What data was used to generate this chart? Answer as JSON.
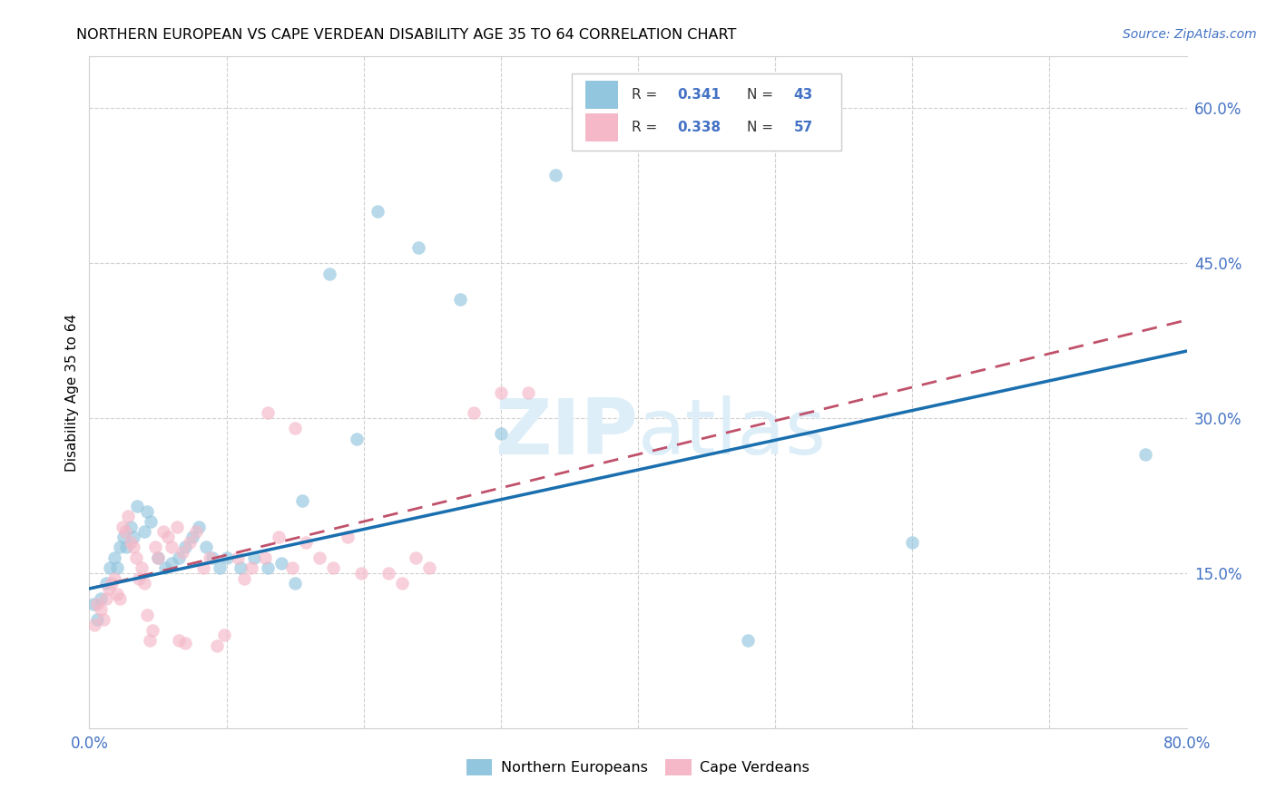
{
  "title": "NORTHERN EUROPEAN VS CAPE VERDEAN DISABILITY AGE 35 TO 64 CORRELATION CHART",
  "source": "Source: ZipAtlas.com",
  "ylabel": "Disability Age 35 to 64",
  "xlim": [
    0,
    0.8
  ],
  "ylim": [
    0,
    0.65
  ],
  "ytick_labels_right": [
    "15.0%",
    "30.0%",
    "45.0%",
    "60.0%"
  ],
  "ytick_vals_right": [
    0.15,
    0.3,
    0.45,
    0.6
  ],
  "legend_label1": "Northern Europeans",
  "legend_label2": "Cape Verdeans",
  "blue_color": "#92c5de",
  "pink_color": "#f4b8c8",
  "line_blue_color": "#1a6faf",
  "line_pink_color": "#c0516a",
  "watermark_color": "#ddeef8",
  "blue_scatter": [
    [
      0.003,
      0.12
    ],
    [
      0.006,
      0.105
    ],
    [
      0.008,
      0.125
    ],
    [
      0.012,
      0.14
    ],
    [
      0.015,
      0.155
    ],
    [
      0.018,
      0.165
    ],
    [
      0.02,
      0.155
    ],
    [
      0.022,
      0.175
    ],
    [
      0.025,
      0.185
    ],
    [
      0.027,
      0.175
    ],
    [
      0.03,
      0.195
    ],
    [
      0.032,
      0.185
    ],
    [
      0.035,
      0.215
    ],
    [
      0.04,
      0.19
    ],
    [
      0.042,
      0.21
    ],
    [
      0.045,
      0.2
    ],
    [
      0.05,
      0.165
    ],
    [
      0.055,
      0.155
    ],
    [
      0.06,
      0.16
    ],
    [
      0.065,
      0.165
    ],
    [
      0.07,
      0.175
    ],
    [
      0.075,
      0.185
    ],
    [
      0.08,
      0.195
    ],
    [
      0.085,
      0.175
    ],
    [
      0.09,
      0.165
    ],
    [
      0.095,
      0.155
    ],
    [
      0.1,
      0.165
    ],
    [
      0.11,
      0.155
    ],
    [
      0.12,
      0.165
    ],
    [
      0.13,
      0.155
    ],
    [
      0.14,
      0.16
    ],
    [
      0.15,
      0.14
    ],
    [
      0.175,
      0.44
    ],
    [
      0.21,
      0.5
    ],
    [
      0.24,
      0.465
    ],
    [
      0.27,
      0.415
    ],
    [
      0.3,
      0.285
    ],
    [
      0.34,
      0.535
    ],
    [
      0.48,
      0.085
    ],
    [
      0.6,
      0.18
    ],
    [
      0.77,
      0.265
    ],
    [
      0.155,
      0.22
    ],
    [
      0.195,
      0.28
    ]
  ],
  "pink_scatter": [
    [
      0.004,
      0.1
    ],
    [
      0.006,
      0.12
    ],
    [
      0.008,
      0.115
    ],
    [
      0.01,
      0.105
    ],
    [
      0.012,
      0.125
    ],
    [
      0.014,
      0.135
    ],
    [
      0.016,
      0.14
    ],
    [
      0.018,
      0.145
    ],
    [
      0.02,
      0.13
    ],
    [
      0.022,
      0.125
    ],
    [
      0.024,
      0.195
    ],
    [
      0.026,
      0.19
    ],
    [
      0.028,
      0.205
    ],
    [
      0.03,
      0.18
    ],
    [
      0.032,
      0.175
    ],
    [
      0.034,
      0.165
    ],
    [
      0.036,
      0.145
    ],
    [
      0.038,
      0.155
    ],
    [
      0.04,
      0.14
    ],
    [
      0.042,
      0.11
    ],
    [
      0.044,
      0.085
    ],
    [
      0.046,
      0.095
    ],
    [
      0.048,
      0.175
    ],
    [
      0.05,
      0.165
    ],
    [
      0.054,
      0.19
    ],
    [
      0.057,
      0.185
    ],
    [
      0.06,
      0.175
    ],
    [
      0.064,
      0.195
    ],
    [
      0.068,
      0.17
    ],
    [
      0.073,
      0.18
    ],
    [
      0.078,
      0.19
    ],
    [
      0.083,
      0.155
    ],
    [
      0.088,
      0.165
    ],
    [
      0.093,
      0.08
    ],
    [
      0.098,
      0.09
    ],
    [
      0.108,
      0.165
    ],
    [
      0.113,
      0.145
    ],
    [
      0.118,
      0.155
    ],
    [
      0.128,
      0.165
    ],
    [
      0.138,
      0.185
    ],
    [
      0.148,
      0.155
    ],
    [
      0.158,
      0.18
    ],
    [
      0.168,
      0.165
    ],
    [
      0.178,
      0.155
    ],
    [
      0.188,
      0.185
    ],
    [
      0.198,
      0.15
    ],
    [
      0.218,
      0.15
    ],
    [
      0.228,
      0.14
    ],
    [
      0.238,
      0.165
    ],
    [
      0.248,
      0.155
    ],
    [
      0.13,
      0.305
    ],
    [
      0.15,
      0.29
    ],
    [
      0.28,
      0.305
    ],
    [
      0.3,
      0.325
    ],
    [
      0.32,
      0.325
    ],
    [
      0.065,
      0.085
    ],
    [
      0.07,
      0.082
    ]
  ],
  "blue_line_x": [
    0.0,
    0.8
  ],
  "blue_line_y": [
    0.135,
    0.365
  ],
  "pink_line_x": [
    0.0,
    0.8
  ],
  "pink_line_y": [
    0.135,
    0.395
  ],
  "figsize": [
    14.06,
    8.92
  ],
  "dpi": 100
}
